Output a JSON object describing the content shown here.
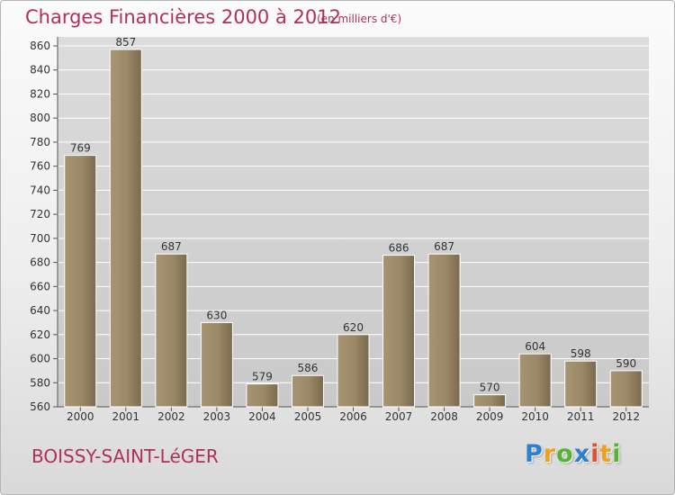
{
  "title": "Charges Financières 2000 à 2012",
  "subtitle": "(en milliers d'€)",
  "town": "BOISSY-SAINT-LéGER",
  "logo": {
    "letters": [
      "P",
      "r",
      "o",
      "x",
      "i",
      "t",
      "i"
    ],
    "colors": [
      "#2f7fd0",
      "#f0a020",
      "#56b432",
      "#2f7fd0",
      "#e04f2f",
      "#f0a020",
      "#56b432"
    ]
  },
  "chart_data": {
    "type": "bar",
    "title": "Charges Financières 2000 à 2012",
    "subtitle": "(en milliers d'€)",
    "categories": [
      "2000",
      "2001",
      "2002",
      "2003",
      "2004",
      "2005",
      "2006",
      "2007",
      "2008",
      "2009",
      "2010",
      "2011",
      "2012"
    ],
    "values": [
      769,
      857,
      687,
      630,
      579,
      586,
      620,
      686,
      687,
      570,
      604,
      598,
      590
    ],
    "ylim": [
      560,
      860
    ],
    "yticks": [
      560,
      580,
      600,
      620,
      640,
      660,
      680,
      700,
      720,
      740,
      760,
      780,
      800,
      820,
      840,
      860
    ],
    "grid": true,
    "bar_color": "#8b7a5c",
    "legend": "none"
  }
}
